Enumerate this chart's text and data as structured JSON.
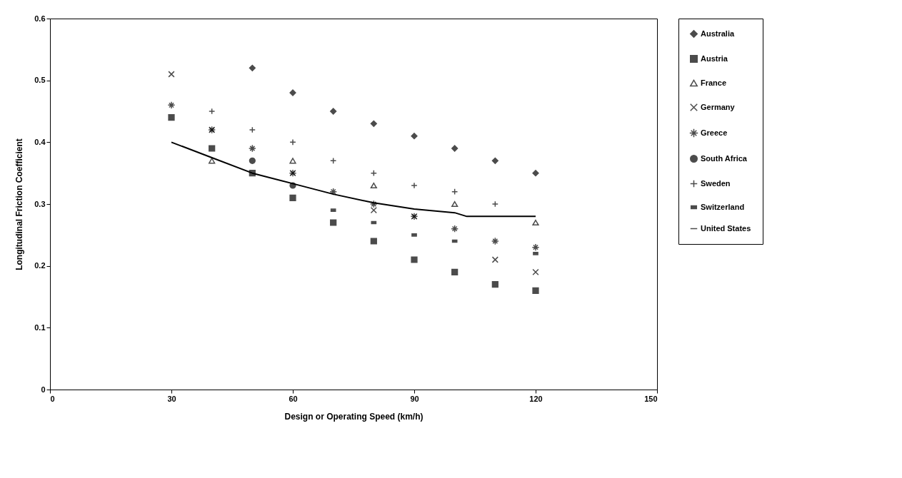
{
  "chart_data": {
    "type": "scatter",
    "xlabel": "Design or Operating Speed (km/h)",
    "ylabel": "Longitudinal Friction Coefficient",
    "xlim": [
      0,
      150
    ],
    "xticks": [
      0,
      30,
      60,
      90,
      120,
      150
    ],
    "ylim": [
      0,
      0.6
    ],
    "yticks": [
      0,
      0.1,
      0.2,
      0.3,
      0.4,
      0.5,
      0.6
    ],
    "grid": false,
    "legend": "right",
    "series": [
      {
        "name": "Australia",
        "color": "#000000",
        "marker": "diamond",
        "x": [
          50,
          60,
          70,
          80,
          90,
          100,
          110,
          120
        ],
        "values": [
          0.52,
          0.48,
          0.45,
          0.43,
          0.41,
          0.39,
          0.37,
          0.35
        ]
      },
      {
        "name": "Austria",
        "color": "#000000",
        "marker": "square",
        "x": [
          30,
          40,
          50,
          60,
          70,
          80,
          90,
          100,
          110,
          120
        ],
        "values": [
          0.44,
          0.39,
          0.35,
          0.31,
          0.27,
          0.24,
          0.21,
          0.19,
          0.17,
          0.16
        ]
      },
      {
        "name": "France",
        "color": "#000000",
        "marker": "triangle",
        "x": [
          40,
          60,
          80,
          100,
          120
        ],
        "values": [
          0.37,
          0.37,
          0.33,
          0.3,
          0.27
        ]
      },
      {
        "name": "Germany",
        "color": "#000000",
        "marker": "x",
        "x": [
          30,
          40,
          60,
          80,
          90,
          110,
          120
        ],
        "values": [
          0.51,
          0.42,
          0.35,
          0.29,
          0.28,
          0.21,
          0.19
        ]
      },
      {
        "name": "Greece",
        "color": "#000000",
        "marker": "cross",
        "x": [
          30,
          40,
          50,
          60,
          70,
          80,
          90,
          100,
          110,
          120
        ],
        "values": [
          0.46,
          0.42,
          0.39,
          0.35,
          0.32,
          0.3,
          0.28,
          0.26,
          0.24,
          0.23
        ]
      },
      {
        "name": "South Africa",
        "color": "#000000",
        "marker": "circle",
        "x": [
          50,
          60
        ],
        "values": [
          0.37,
          0.33
        ]
      },
      {
        "name": "Sweden",
        "color": "#000000",
        "marker": "plus",
        "x": [
          40,
          50,
          60,
          70,
          80,
          90,
          100,
          110
        ],
        "values": [
          0.45,
          0.42,
          0.4,
          0.37,
          0.35,
          0.33,
          0.32,
          0.3
        ]
      },
      {
        "name": "Switzerland",
        "color": "#000000",
        "x": [
          70,
          80,
          90,
          100,
          120
        ],
        "values": [
          0.29,
          0.27,
          0.25,
          0.24,
          0.22
        ]
      },
      {
        "name": "United States",
        "color": "#000000",
        "type": "line",
        "x": [
          30,
          40,
          50,
          60,
          70,
          80,
          90,
          100,
          103,
          120
        ],
        "values": [
          0.4,
          0.375,
          0.35,
          0.333,
          0.316,
          0.302,
          0.292,
          0.286,
          0.28,
          0.28
        ]
      }
    ]
  }
}
